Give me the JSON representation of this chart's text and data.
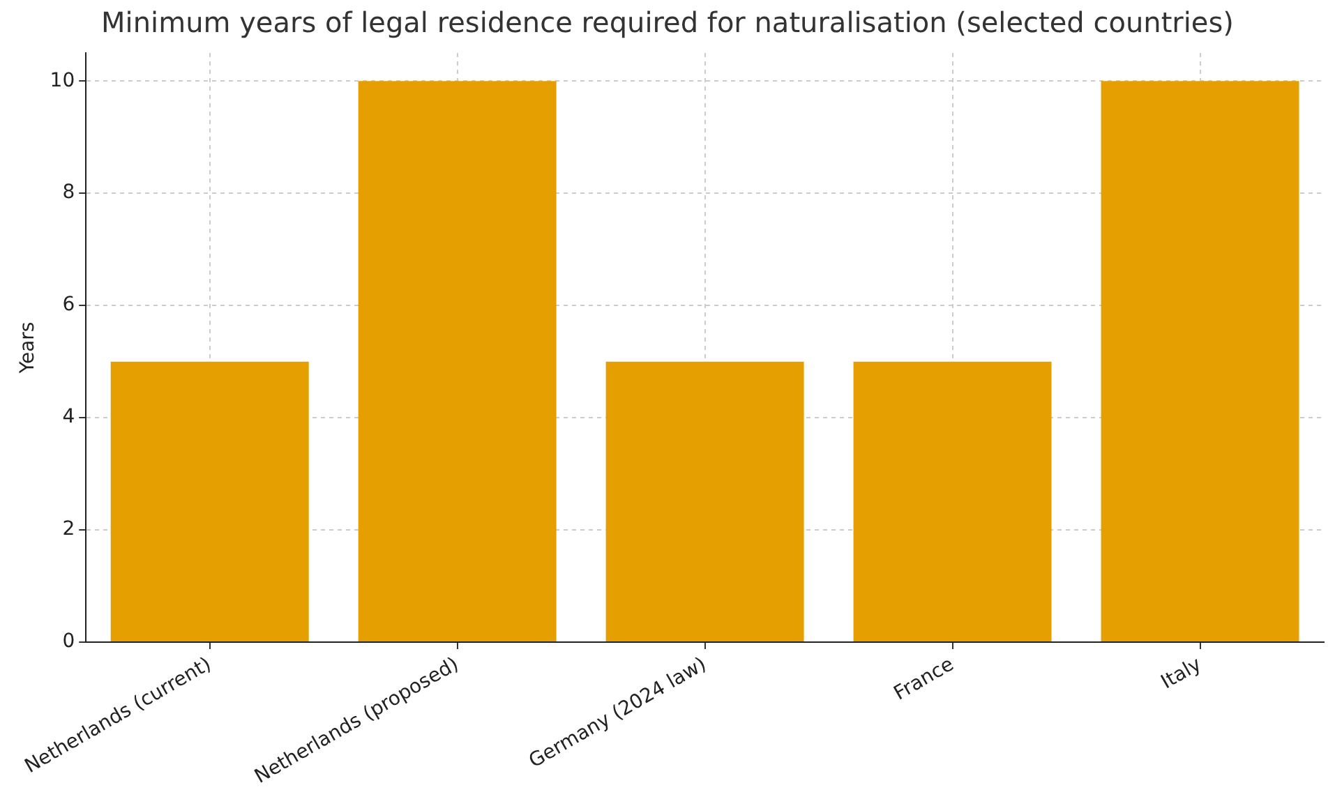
{
  "chart_data": {
    "type": "bar",
    "title": "Minimum years of legal residence required for naturalisation (selected countries)",
    "ylabel": "Years",
    "categories": [
      "Netherlands (current)",
      "Netherlands (proposed)",
      "Germany (2024 law)",
      "France",
      "Italy"
    ],
    "values": [
      5,
      10,
      5,
      5,
      10
    ],
    "color": "#e69f00",
    "ylim": [
      0,
      10.5
    ],
    "yticks": [
      0,
      2,
      4,
      6,
      8,
      10
    ],
    "grid": true
  }
}
